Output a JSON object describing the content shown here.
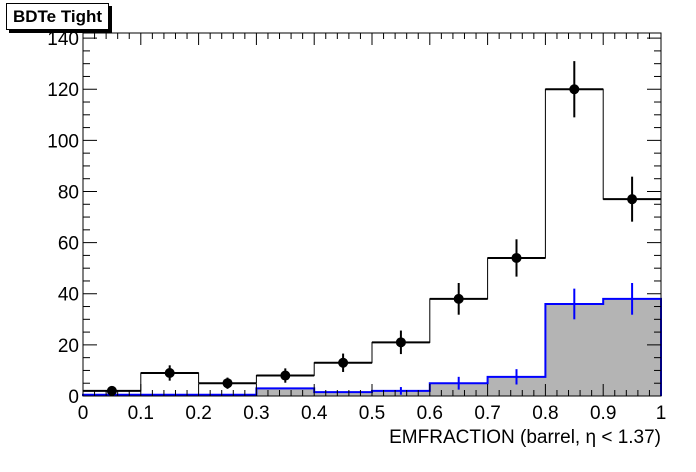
{
  "chart_data": {
    "type": "bar",
    "title": "BDTe Tight",
    "xlabel": "EMFRACTION (barrel,  η < 1.37)",
    "ylabel": "",
    "xlim": [
      0,
      1
    ],
    "ylim": [
      0,
      142
    ],
    "x_ticks": [
      "0",
      "0.1",
      "0.2",
      "0.3",
      "0.4",
      "0.5",
      "0.6",
      "0.7",
      "0.8",
      "0.9",
      "1"
    ],
    "y_ticks": [
      "0",
      "20",
      "40",
      "60",
      "80",
      "100",
      "120",
      "140"
    ],
    "bin_edges": [
      0,
      0.1,
      0.2,
      0.3,
      0.4,
      0.5,
      0.6,
      0.7,
      0.8,
      0.9,
      1.0
    ],
    "series": [
      {
        "kind": "histogram-outline",
        "color": "#000000",
        "values": [
          2,
          9,
          5,
          8,
          13,
          21,
          38,
          54,
          120,
          77
        ]
      },
      {
        "kind": "histogram-filled",
        "color": "#0000ff",
        "fill": "#b4b4b4",
        "values": [
          0.5,
          0.5,
          0.5,
          3,
          1.5,
          2,
          5,
          7.5,
          36,
          38
        ],
        "errors": [
          0,
          0,
          0,
          0,
          0,
          1.5,
          2.5,
          3,
          6,
          6.2
        ]
      },
      {
        "kind": "data-points",
        "color": "#000000",
        "x": [
          0.05,
          0.15,
          0.25,
          0.35,
          0.45,
          0.55,
          0.65,
          0.75,
          0.85,
          0.95
        ],
        "values": [
          2,
          9,
          5,
          8,
          13,
          21,
          38,
          54,
          120,
          77
        ],
        "errors": [
          1.4,
          3,
          2.2,
          2.8,
          3.6,
          4.6,
          6.2,
          7.3,
          11,
          8.8
        ]
      }
    ]
  }
}
